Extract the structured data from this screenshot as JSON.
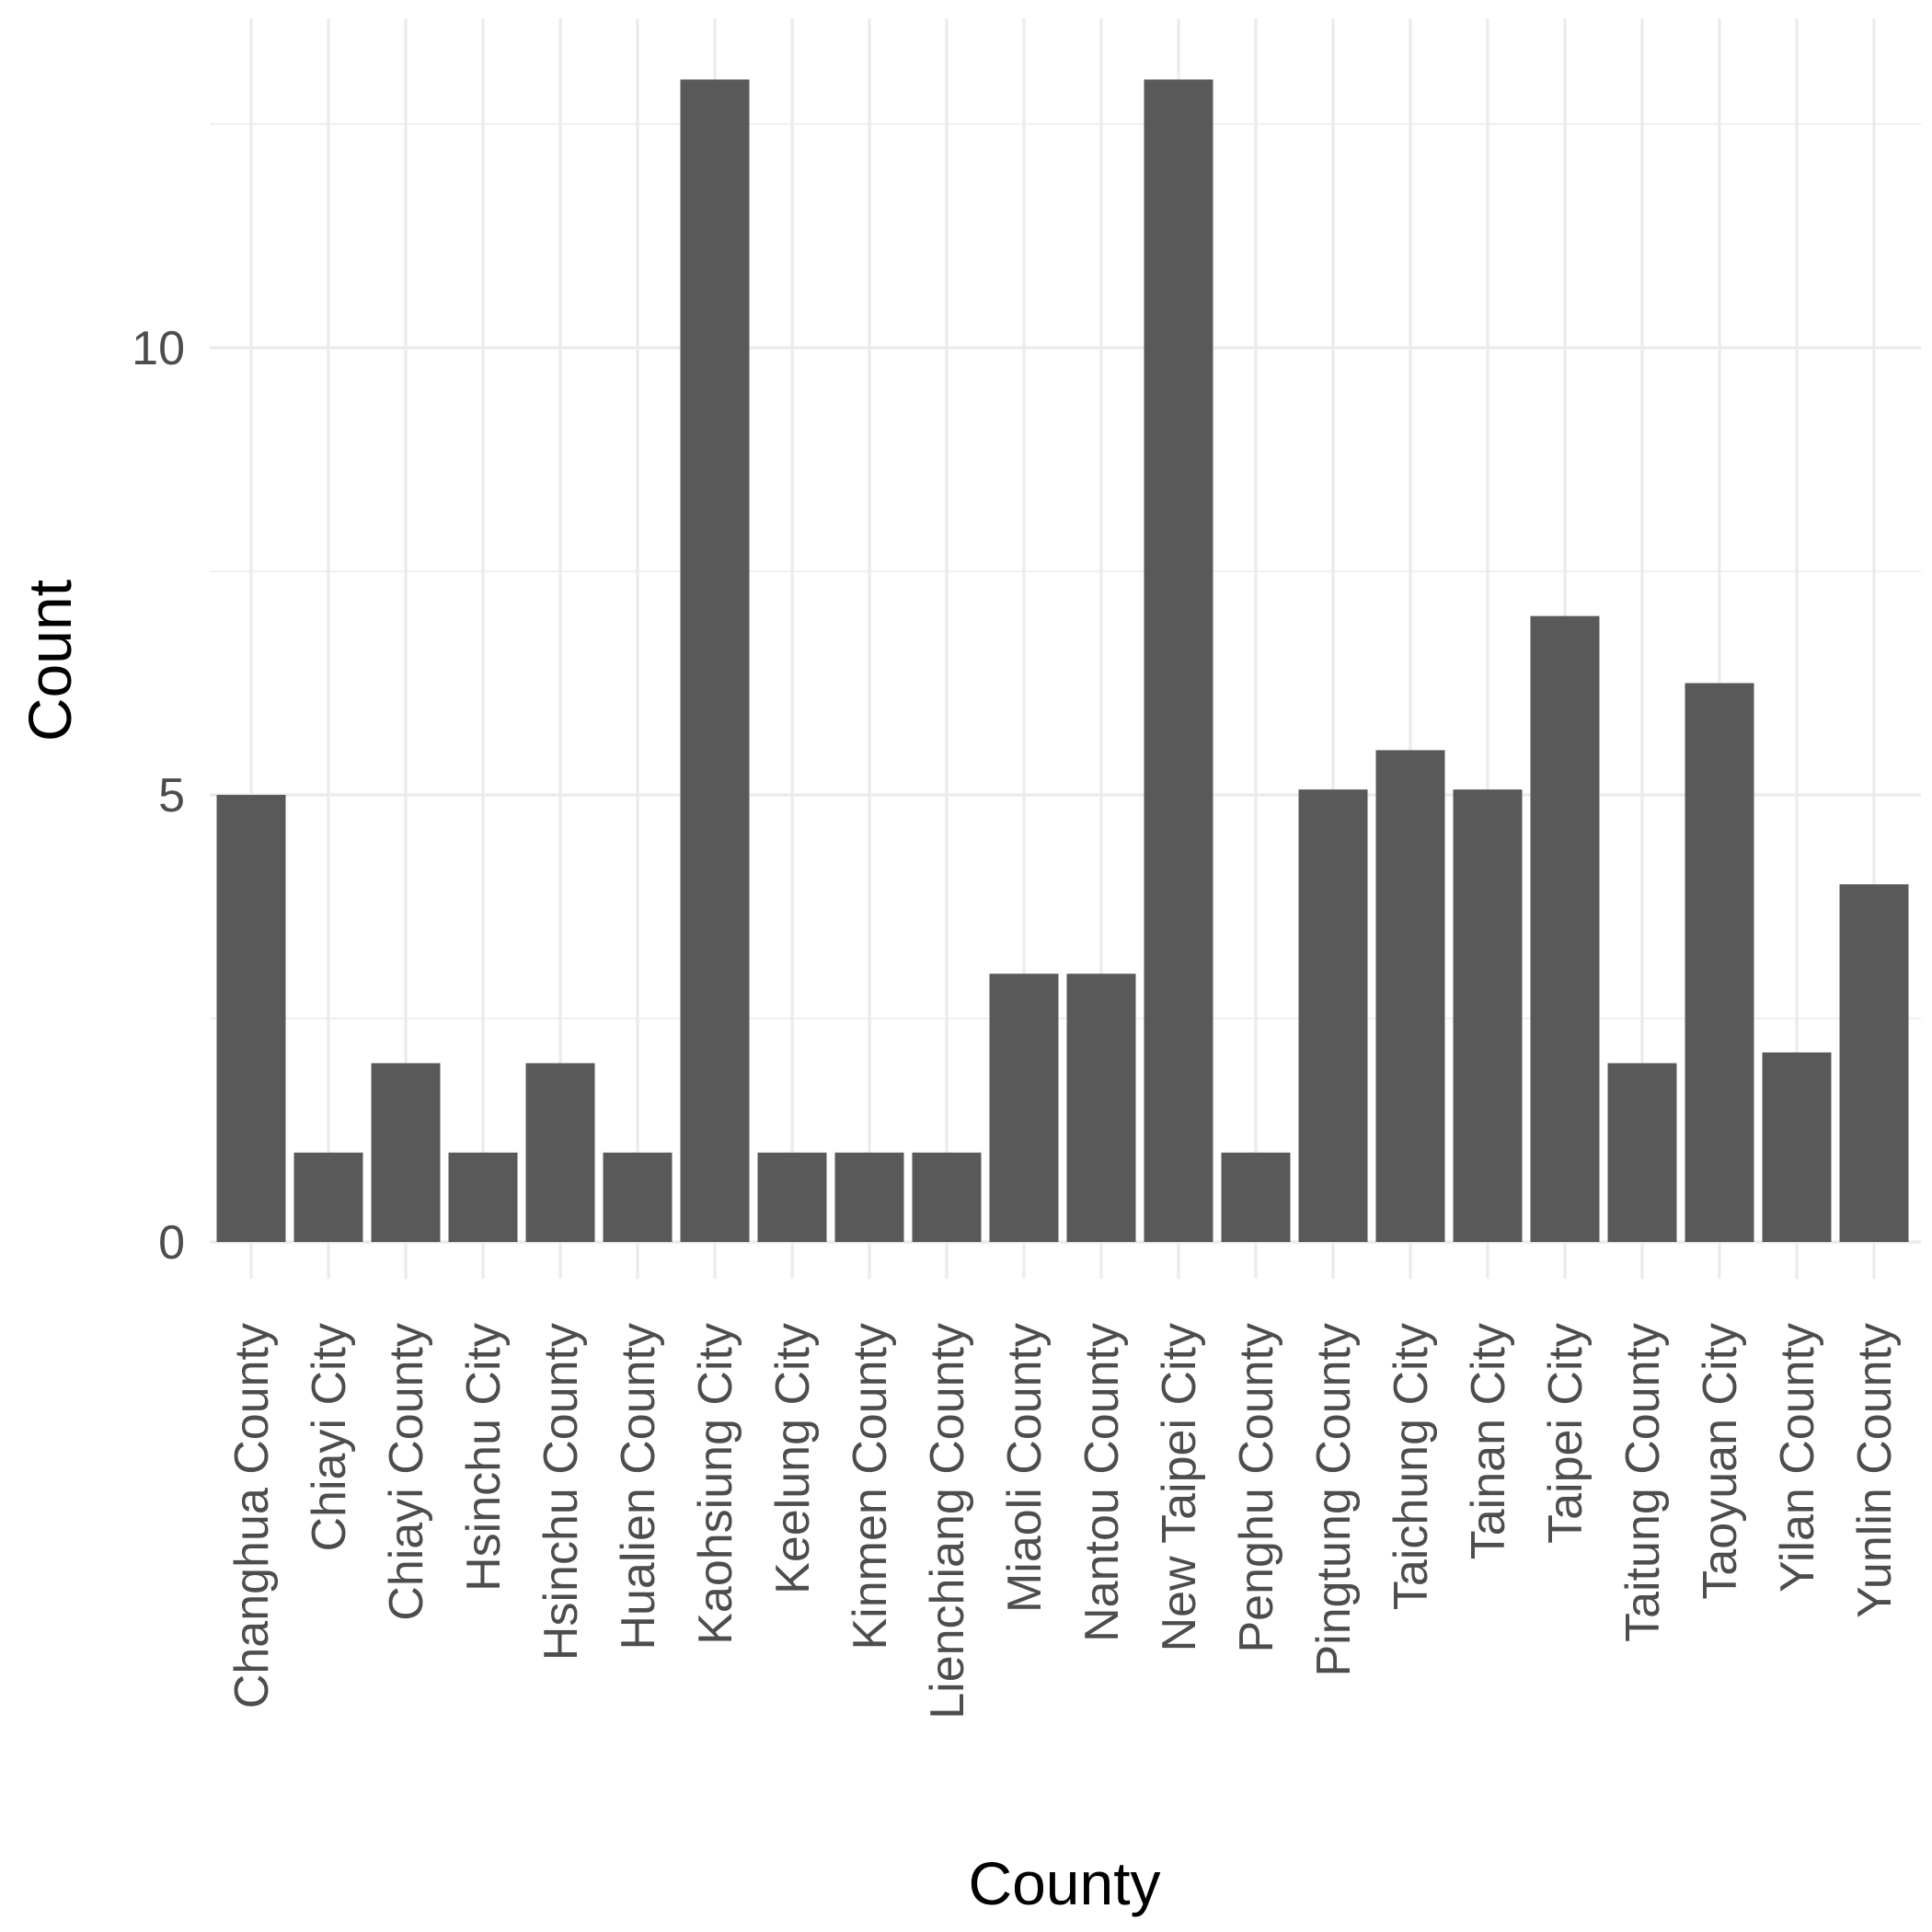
{
  "chart_data": {
    "type": "bar",
    "title": "",
    "xlabel": "County",
    "ylabel": "Count",
    "ylim": [
      0,
      13.6
    ],
    "yticks": [
      0,
      5,
      10
    ],
    "grid": true,
    "legend": "none",
    "bar_color": "#595959",
    "grid_color": "#ebebeb",
    "categories": [
      "Changhua County",
      "Chiayi City",
      "Chiayi County",
      "Hsinchu City",
      "Hsinchu County",
      "Hualien County",
      "Kaohsiung City",
      "Keelung City",
      "Kinmen County",
      "Lienchiang County",
      "Miaoli County",
      "Nantou County",
      "New Taipei City",
      "Penghu County",
      "Pingtung County",
      "Taichung City",
      "Tainan City",
      "Taipei City",
      "Taitung County",
      "Taoyuan City",
      "Yilan County",
      "Yunlin County"
    ],
    "values": [
      5,
      1,
      2,
      1,
      2,
      1,
      13,
      1,
      1,
      1,
      3,
      3,
      13,
      1,
      5.06,
      5.5,
      5.06,
      7,
      2,
      6.25,
      2.12,
      4
    ]
  }
}
